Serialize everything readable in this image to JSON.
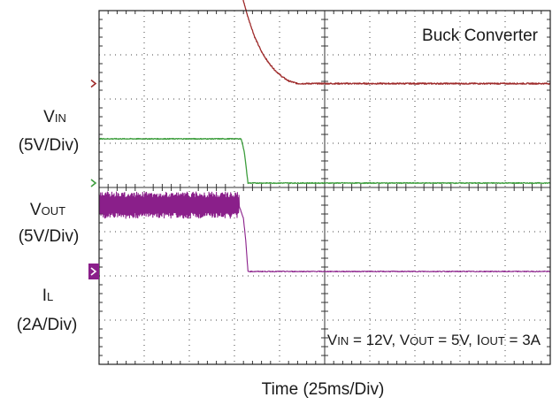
{
  "chart_data": {
    "type": "line",
    "title": "Buck Converter",
    "xlabel": "Time (25ms/Div)",
    "x_divisions": 10,
    "y_divisions": 8,
    "grid": true,
    "conditions": {
      "vin": {
        "sym": "V",
        "sub": "IN",
        "val": " = 12V, "
      },
      "vout": {
        "sym": "V",
        "sub": "OUT",
        "val": " = 5V, "
      },
      "iout": {
        "sym": "I",
        "sub": "OUT",
        "val": " = 3A"
      }
    },
    "x_unit": "div",
    "series": [
      {
        "key": "vin",
        "label_sym": "V",
        "label_sub": "IN",
        "scale": "(5V/Div)",
        "color": "#9e2a2a",
        "marker": "›",
        "ground_div": 1.65,
        "noise": 0.03,
        "points": [
          [
            0,
            2.3
          ],
          [
            3.0,
            2.3
          ],
          [
            3.15,
            2.05
          ],
          [
            3.3,
            1.5
          ],
          [
            3.45,
            1.05
          ],
          [
            3.6,
            0.72
          ],
          [
            3.75,
            0.48
          ],
          [
            3.9,
            0.3
          ],
          [
            4.05,
            0.16
          ],
          [
            4.2,
            0.06
          ],
          [
            4.4,
            0.0
          ],
          [
            10,
            0.0
          ]
        ]
      },
      {
        "key": "vout",
        "label_sym": "V",
        "label_sub": "OUT",
        "scale": "(5V/Div)",
        "color": "#3e9e3e",
        "marker": "›",
        "ground_div": 3.9,
        "noise": 0.02,
        "points": [
          [
            0,
            1.0
          ],
          [
            3.15,
            1.0
          ],
          [
            3.22,
            0.7
          ],
          [
            3.3,
            0.0
          ],
          [
            10,
            0.0
          ]
        ]
      },
      {
        "key": "il",
        "label_sym": "I",
        "label_sub": "L",
        "scale": "(2A/Div)",
        "color": "#8a1f8a",
        "marker": "▶",
        "ground_div": 5.9,
        "ripple": 0.3,
        "noise": 0.02,
        "points": [
          [
            0,
            1.5
          ],
          [
            3.1,
            1.5
          ],
          [
            3.2,
            1.2
          ],
          [
            3.25,
            0.7
          ],
          [
            3.3,
            0.0
          ],
          [
            10,
            0.0
          ]
        ]
      }
    ]
  }
}
